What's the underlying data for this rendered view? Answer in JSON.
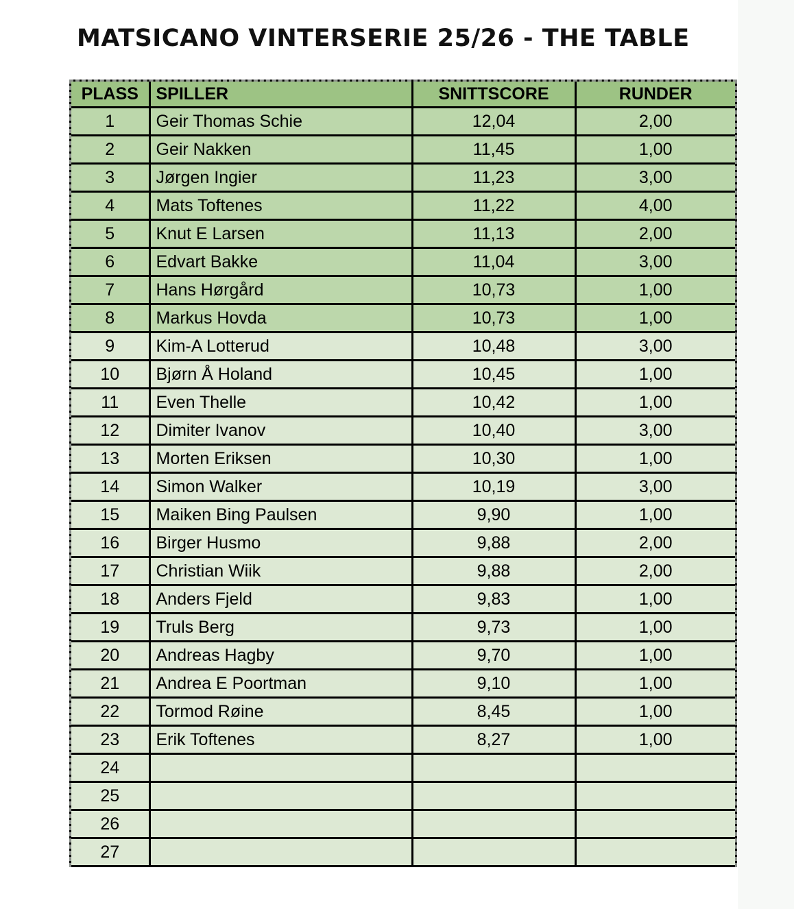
{
  "title": "MATSICANO VINTERSERIE 25/26 - THE TABLE",
  "colors": {
    "header": "#9dc384",
    "top8": "#bcd7ab",
    "rest": "#dde9d4"
  },
  "table": {
    "columns": [
      "PLASS",
      "SPILLER",
      "SNITTSCORE",
      "RUNDER"
    ],
    "rows": [
      [
        "1",
        "Geir Thomas Schie",
        "12,04",
        "2,00"
      ],
      [
        "2",
        "Geir Nakken",
        "11,45",
        "1,00"
      ],
      [
        "3",
        "Jørgen Ingier",
        "11,23",
        "3,00"
      ],
      [
        "4",
        "Mats Toftenes",
        "11,22",
        "4,00"
      ],
      [
        "5",
        "Knut E Larsen",
        "11,13",
        "2,00"
      ],
      [
        "6",
        "Edvart Bakke",
        "11,04",
        "3,00"
      ],
      [
        "7",
        "Hans Hørgård",
        "10,73",
        "1,00"
      ],
      [
        "8",
        "Markus Hovda",
        "10,73",
        "1,00"
      ],
      [
        "9",
        "Kim-A Lotterud",
        "10,48",
        "3,00"
      ],
      [
        "10",
        "Bjørn Å Holand",
        "10,45",
        "1,00"
      ],
      [
        "11",
        "Even Thelle",
        "10,42",
        "1,00"
      ],
      [
        "12",
        "Dimiter Ivanov",
        "10,40",
        "3,00"
      ],
      [
        "13",
        "Morten Eriksen",
        "10,30",
        "1,00"
      ],
      [
        "14",
        "Simon Walker",
        "10,19",
        "3,00"
      ],
      [
        "15",
        "Maiken Bing Paulsen",
        "9,90",
        "1,00"
      ],
      [
        "16",
        "Birger Husmo",
        "9,88",
        "2,00"
      ],
      [
        "17",
        "Christian Wiik",
        "9,88",
        "2,00"
      ],
      [
        "18",
        "Anders Fjeld",
        "9,83",
        "1,00"
      ],
      [
        "19",
        "Truls Berg",
        "9,73",
        "1,00"
      ],
      [
        "20",
        "Andreas Hagby",
        "9,70",
        "1,00"
      ],
      [
        "21",
        "Andrea E Poortman",
        "9,10",
        "1,00"
      ],
      [
        "22",
        "Tormod Røine",
        "8,45",
        "1,00"
      ],
      [
        "23",
        "Erik Toftenes",
        "8,27",
        "1,00"
      ],
      [
        "24",
        "",
        "",
        ""
      ],
      [
        "25",
        "",
        "",
        ""
      ],
      [
        "26",
        "",
        "",
        ""
      ],
      [
        "27",
        "",
        "",
        ""
      ]
    ]
  }
}
